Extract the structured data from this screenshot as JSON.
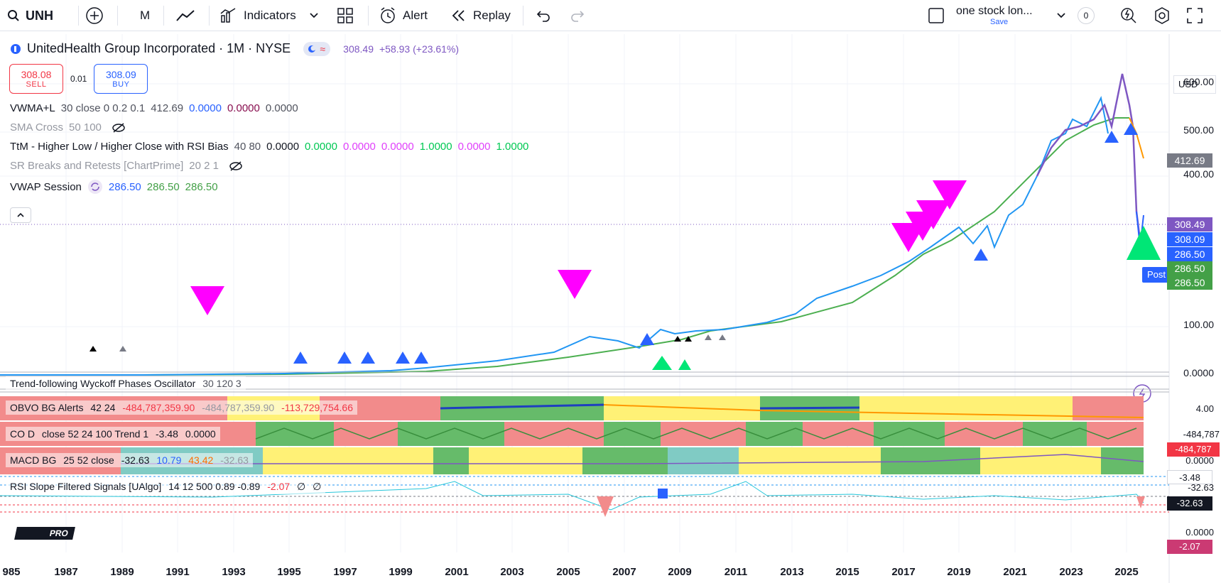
{
  "toolbar": {
    "symbol": "UNH",
    "interval": "M",
    "indicators_label": "Indicators",
    "alert_label": "Alert",
    "replay_label": "Replay",
    "layout_name": "one stock lon...",
    "layout_save": "Save",
    "notif_count": "0"
  },
  "header": {
    "title": "UnitedHealth Group Incorporated · 1M · NYSE",
    "price": "308.49",
    "change": "+58.93 (+23.61%)",
    "sell_price": "308.08",
    "sell_label": "SELL",
    "spread": "0.01",
    "buy_price": "308.09",
    "buy_label": "BUY"
  },
  "legends": {
    "vwma": {
      "name": "VWMA+L",
      "params": "30 close 0 0.2 0.1",
      "v1": "412.69",
      "v2": "0.0000",
      "v3": "0.0000",
      "v4": "0.0000"
    },
    "sma": {
      "name": "SMA Cross",
      "params": "50 100"
    },
    "ttm": {
      "name": "TtM - Higher Low / Higher Close with RSI Bias",
      "params": "40 80",
      "v1": "0.0000",
      "v2": "0.0000",
      "v3": "0.0000",
      "v4": "0.0000",
      "v5": "1.0000",
      "v6": "0.0000",
      "v7": "1.0000"
    },
    "sr": {
      "name": "SR Breaks and Retests [ChartPrime]",
      "params": "20 2 1"
    },
    "vwap": {
      "name": "VWAP Session",
      "v1": "286.50",
      "v2": "286.50",
      "v3": "286.50"
    }
  },
  "panes": {
    "wyckoff": {
      "name": "Trend-following Wyckoff Phases Oscillator",
      "params": "30 120 3"
    },
    "obvo": {
      "name": "OBVO BG Alerts",
      "params": "42 24",
      "v1": "-484,787,359.90",
      "v2": "-484,787,359.90",
      "v3": "-113,729,754.66"
    },
    "cod": {
      "name": "CO D",
      "params": "close 52 24 100 Trend 1",
      "v1": "-3.48",
      "v2": "0.0000"
    },
    "macd": {
      "name": "MACD BG",
      "params": "25 52 close",
      "v1": "-32.63",
      "v2": "10.79",
      "v3": "43.42",
      "v4": "-32.63"
    },
    "rsi": {
      "name": "RSI Slope Filtered Signals [UAlgo]",
      "params": "14 12 500 0.89 -0.89",
      "v1": "-2.07",
      "v2": "∅",
      "v3": "∅"
    }
  },
  "price_scale": {
    "currency": "USD",
    "ticks": [
      "600.00",
      "500.00",
      "400.00",
      "100.00",
      "0.0000"
    ],
    "wyckoff_tick": "4.00",
    "obvo_tick": "-484,787",
    "cod_tick": "0.0000",
    "macd_tick": "-32.63",
    "rsi_tick": "0.0000",
    "post_label": "Post"
  },
  "price_tags": [
    {
      "value": "412.69",
      "color": "#787b86"
    },
    {
      "value": "308.49",
      "color": "#7e57c2"
    },
    {
      "value": "308.09",
      "color": "#2962ff"
    },
    {
      "value": "286.50",
      "color": "#2962ff"
    },
    {
      "value": "286.50",
      "color": "#43a047"
    },
    {
      "value": "286.50",
      "color": "#43a047"
    }
  ],
  "pane_tags": {
    "obvo": "-484,787",
    "cod": "-3.48",
    "macd": "-32.63",
    "rsi": "-2.07"
  },
  "time_axis": [
    "985",
    "1987",
    "1989",
    "1991",
    "1993",
    "1995",
    "1997",
    "1999",
    "2001",
    "2003",
    "2005",
    "2007",
    "2009",
    "2011",
    "2013",
    "2015",
    "2017",
    "2019",
    "2021",
    "2023",
    "2025"
  ],
  "chart_data": {
    "type": "line",
    "symbol": "UNH",
    "interval": "1M",
    "x": [
      1986,
      1990,
      1995,
      2000,
      2004,
      2006,
      2008,
      2009,
      2011,
      2014,
      2016,
      2018,
      2019.5,
      2020,
      2021,
      2022,
      2023,
      2024,
      2024.5,
      2025,
      2025.3
    ],
    "series": [
      {
        "name": "UnitedHealth Group Incorporated",
        "values": [
          0,
          1,
          2,
          4,
          30,
          55,
          45,
          25,
          30,
          80,
          120,
          280,
          240,
          300,
          400,
          510,
          500,
          560,
          580,
          500,
          308
        ]
      }
    ],
    "ylim": [
      0,
      620
    ],
    "colors": {
      "price": "#2196f3",
      "ma": "#4caf50",
      "magenta": "#ff00ff",
      "up": "#00e676",
      "blue": "#2962ff"
    }
  }
}
